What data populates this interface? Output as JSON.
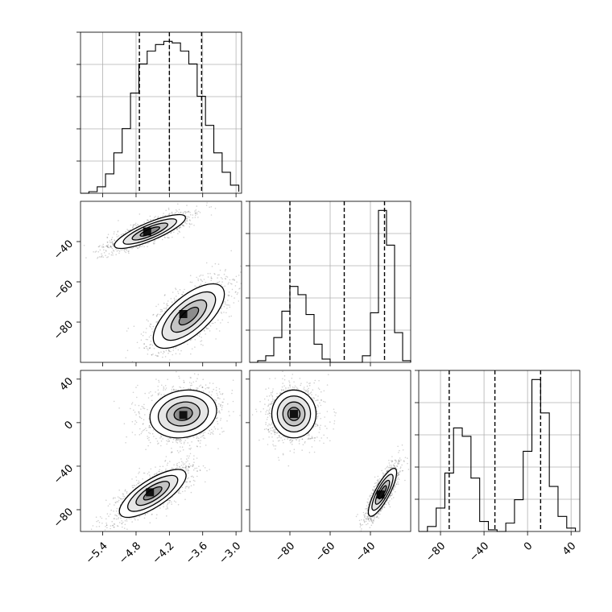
{
  "chart_data": {
    "type": "corner",
    "parameters": [
      {
        "id": "p0",
        "range": [
          -5.8,
          -2.9
        ],
        "ticks": [
          -5.4,
          -4.8,
          -4.2,
          -3.6,
          -3.0
        ],
        "tick_labels": [
          "−5.4",
          "−4.8",
          "−4.2",
          "−3.6",
          "−3.0"
        ],
        "quantiles": [
          -4.74,
          -4.2,
          -3.62
        ],
        "hist": {
          "edges": [
            -5.8,
            -5.65,
            -5.5,
            -5.35,
            -5.2,
            -5.05,
            -4.9,
            -4.75,
            -4.6,
            -4.45,
            -4.3,
            -4.15,
            -4.0,
            -3.85,
            -3.7,
            -3.55,
            -3.4,
            -3.25,
            -3.1,
            -2.95
          ],
          "counts": [
            0.0,
            0.01,
            0.04,
            0.12,
            0.25,
            0.4,
            0.62,
            0.8,
            0.88,
            0.92,
            0.94,
            0.93,
            0.88,
            0.8,
            0.6,
            0.42,
            0.25,
            0.13,
            0.05,
            0.01
          ]
        }
      },
      {
        "id": "p1",
        "range": [
          -100,
          -20
        ],
        "ticks": [
          -80,
          -60,
          -40
        ],
        "tick_labels": [
          "−80",
          "−60",
          "−40"
        ],
        "quantiles": [
          -80,
          -53,
          -33
        ],
        "hist": {
          "edges": [
            -100,
            -96,
            -92,
            -88,
            -84,
            -80,
            -76,
            -72,
            -68,
            -64,
            -60,
            -56,
            -52,
            -48,
            -44,
            -40,
            -36,
            -32,
            -28,
            -24,
            -20
          ],
          "counts": [
            0.0,
            0.01,
            0.04,
            0.15,
            0.31,
            0.46,
            0.41,
            0.29,
            0.11,
            0.02,
            0.0,
            0.0,
            0.0,
            0.0,
            0.04,
            0.3,
            0.92,
            0.71,
            0.18,
            0.01
          ]
        }
      },
      {
        "id": "p2",
        "range": [
          -100,
          48
        ],
        "ticks": [
          -80,
          -40,
          0,
          40
        ],
        "tick_labels": [
          "−80",
          "−40",
          "0",
          "40"
        ],
        "quantiles": [
          -72,
          -30,
          12
        ],
        "hist": {
          "edges": [
            -100,
            -92,
            -84,
            -76,
            -68,
            -60,
            -52,
            -44,
            -36,
            -28,
            -20,
            -12,
            -4,
            4,
            12,
            20,
            28,
            36,
            44
          ],
          "counts": [
            0.0,
            0.03,
            0.14,
            0.35,
            0.62,
            0.57,
            0.32,
            0.06,
            0.01,
            0.0,
            0.05,
            0.19,
            0.48,
            0.91,
            0.71,
            0.27,
            0.09,
            0.02
          ]
        }
      }
    ],
    "joint": [
      {
        "x": "p0",
        "y": "p1",
        "modes": [
          {
            "center": [
              -4.55,
              -35
            ],
            "spread": [
              0.32,
              4.2
            ],
            "rho": 0.82,
            "peak_cell": [
              -4.6,
              -35
            ]
          },
          {
            "center": [
              -3.85,
              -77
            ],
            "spread": [
              0.32,
              8.0
            ],
            "rho": 0.68,
            "peak_cell": [
              -3.95,
              -76
            ]
          }
        ]
      },
      {
        "x": "p0",
        "y": "p2",
        "modes": [
          {
            "center": [
              -3.95,
              8
            ],
            "spread": [
              0.3,
              11
            ],
            "rho": 0.15,
            "peak_cell": [
              -3.95,
              7
            ]
          },
          {
            "center": [
              -4.5,
              -65
            ],
            "spread": [
              0.3,
              11
            ],
            "rho": 0.75,
            "peak_cell": [
              -4.55,
              -64
            ]
          }
        ]
      },
      {
        "x": "p1",
        "y": "p2",
        "modes": [
          {
            "center": [
              -78,
              8
            ],
            "spread": [
              5.5,
              11
            ],
            "rho": 0.0,
            "peak_cell": [
              -78,
              8
            ]
          },
          {
            "center": [
              -34,
              -64
            ],
            "spread": [
              3.5,
              11
            ],
            "rho": 0.82,
            "peak_cell": [
              -35,
              -66
            ]
          }
        ]
      }
    ]
  }
}
